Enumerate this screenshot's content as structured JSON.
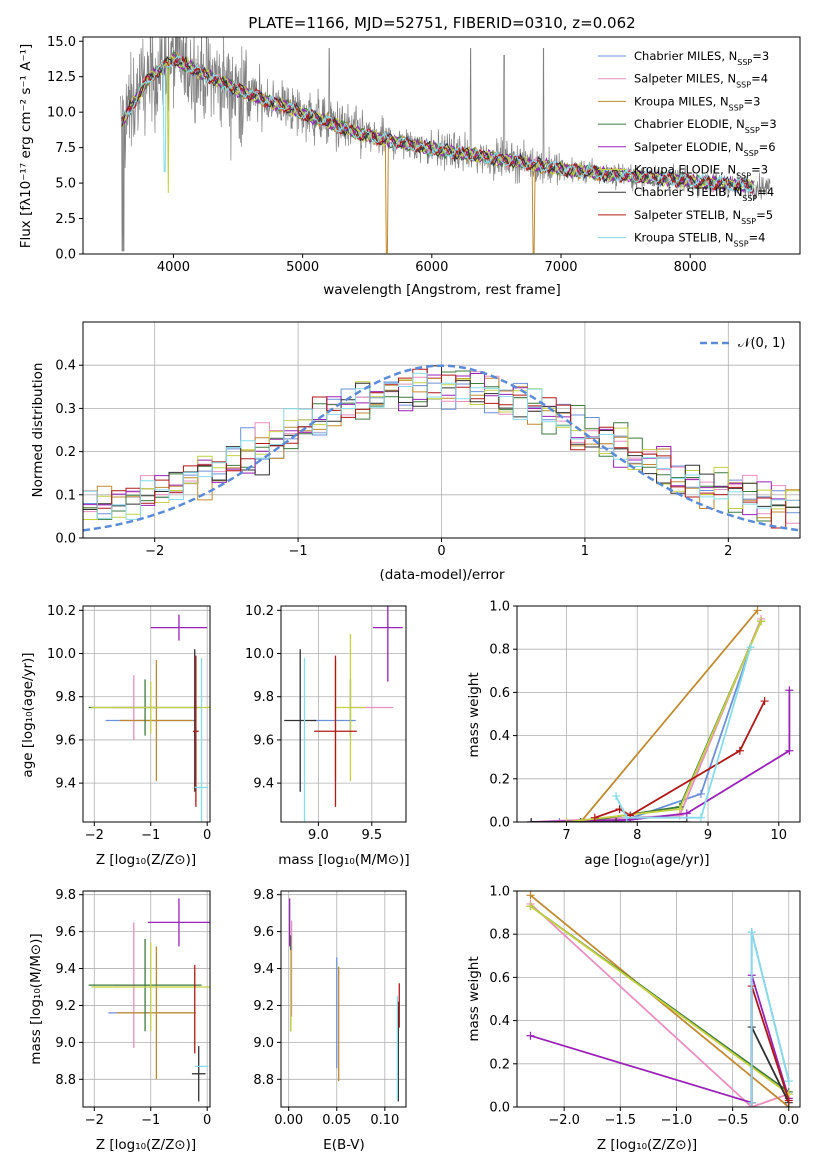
{
  "title": "PLATE=1166, MJD=52751, FIBERID=0310, z=0.062",
  "colors": {
    "spectrum": "#808080",
    "normal": "#5b8bd8",
    "models": [
      "#6c8fd8",
      "#e88fc0",
      "#c08a30",
      "#3d7a3d",
      "#9a22b8",
      "#c4d040",
      "#303030",
      "#b01818",
      "#86dcea"
    ]
  },
  "legend_main": [
    {
      "name": "Chabrier MILES",
      "n": "3"
    },
    {
      "name": "Salpeter MILES",
      "n": "4"
    },
    {
      "name": "Kroupa MILES",
      "n": "3"
    },
    {
      "name": "Chabrier ELODIE",
      "n": "3"
    },
    {
      "name": "Salpeter ELODIE",
      "n": "6"
    },
    {
      "name": "Kroupa ELODIE",
      "n": "3"
    },
    {
      "name": "Chabrier STELIB",
      "n": "4"
    },
    {
      "name": "Salpeter STELIB",
      "n": "5"
    },
    {
      "name": "Kroupa STELIB",
      "n": "4"
    }
  ],
  "legend_prefix": "N",
  "legend_sub": "SSP",
  "chart_data": [
    {
      "id": "spectrum",
      "type": "line",
      "title": "PLATE=1166, MJD=52751, FIBERID=0310, z=0.062",
      "xlabel": "wavelength [Angstrom, rest frame]",
      "ylabel": "Flux [fλ10⁻¹⁷ erg cm⁻² s⁻¹ A⁻¹]",
      "xlim": [
        3300,
        8850
      ],
      "ylim": [
        0,
        15.3
      ],
      "xticks": [
        "4000",
        "5000",
        "6000",
        "7000",
        "8000"
      ],
      "yticks": [
        "0.0",
        "2.5",
        "5.0",
        "7.5",
        "10.0",
        "12.5",
        "15.0"
      ],
      "continuum": {
        "x": [
          3600,
          3700,
          3800,
          3900,
          4000,
          4100,
          4200,
          4300,
          4500,
          4700,
          4900,
          5000,
          5200,
          5400,
          5600,
          5800,
          6000,
          6300,
          6600,
          7000,
          7400,
          7800,
          8200,
          8600
        ],
        "y": [
          9.3,
          10.8,
          12.3,
          13.0,
          13.8,
          13.3,
          12.8,
          12.4,
          11.6,
          10.9,
          10.3,
          9.9,
          9.3,
          8.6,
          8.1,
          7.8,
          7.4,
          7.0,
          6.6,
          6.0,
          5.6,
          5.3,
          5.0,
          4.7
        ]
      },
      "spectrum_range": [
        3590,
        8620
      ],
      "model_range": [
        3600,
        8500
      ]
    },
    {
      "id": "residual_hist",
      "type": "step",
      "xlabel": "(data-model)/error",
      "ylabel": "Normed distribution",
      "xlim": [
        -2.5,
        2.5
      ],
      "ylim": [
        0,
        0.5
      ],
      "xticks": [
        "−2",
        "−1",
        "0",
        "1",
        "2"
      ],
      "yticks": [
        "0.0",
        "0.1",
        "0.2",
        "0.3",
        "0.4"
      ],
      "bin_width": 0.1,
      "reference": "N(0,1)",
      "legend_label": "𝒩(0, 1)"
    },
    {
      "id": "age_vs_Z",
      "type": "errorbar",
      "xlabel": "Z [log₁₀(Z/Z⊙)]",
      "ylabel": "age  [log₁₀(age/yr)]",
      "xlim": [
        -2.2,
        0.05
      ],
      "ylim": [
        9.22,
        10.22
      ],
      "xticks": [
        "−2",
        "−1",
        "0"
      ],
      "yticks": [
        "9.4",
        "9.6",
        "9.8",
        "10.0",
        "10.2"
      ],
      "points": [
        {
          "s": 0,
          "x": -1.0,
          "xe": 0.8,
          "y": 9.69,
          "ye": 0.0
        },
        {
          "s": 1,
          "x": -1.3,
          "xe": 0.4,
          "y": 9.75,
          "ye": 0.15
        },
        {
          "s": 2,
          "x": -0.9,
          "xe": 0.65,
          "y": 9.69,
          "ye": 0.28
        },
        {
          "s": 3,
          "x": -1.1,
          "xe": 1.0,
          "y": 9.75,
          "ye": 0.13
        },
        {
          "s": 4,
          "x": -0.5,
          "xe": 0.5,
          "y": 10.12,
          "ye": 0.06
        },
        {
          "s": 5,
          "x": -1.0,
          "xe": 1.05,
          "y": 9.75,
          "ye": 0.12
        },
        {
          "s": 6,
          "x": -0.22,
          "xe": 0.0,
          "y": 9.69,
          "ye": 0.33
        },
        {
          "s": 7,
          "x": -0.2,
          "xe": 0.05,
          "y": 9.64,
          "ye": 0.35
        },
        {
          "s": 8,
          "x": -0.1,
          "xe": 0.12,
          "y": 9.38,
          "ye": 0.6
        }
      ]
    },
    {
      "id": "age_vs_mass",
      "type": "errorbar",
      "xlabel": "mass [log₁₀(M/M⊙)]",
      "ylabel": "",
      "xlim": [
        8.65,
        9.82
      ],
      "ylim": [
        9.22,
        10.22
      ],
      "xticks": [
        "9.0",
        "9.5"
      ],
      "yticks": [
        "9.4",
        "9.6",
        "9.8",
        "10.0",
        "10.2"
      ],
      "points": [
        {
          "s": 0,
          "x": 9.15,
          "xe": 0.2,
          "y": 9.69,
          "ye": 0.0
        },
        {
          "s": 1,
          "x": 9.5,
          "xe": 0.2,
          "y": 9.75,
          "ye": 0.0
        },
        {
          "s": 2,
          "x": 9.16,
          "xe": 0.0,
          "y": 9.69,
          "ye": 0.28
        },
        {
          "s": 3,
          "x": 9.3,
          "xe": 0.0,
          "y": 9.75,
          "ye": 0.13
        },
        {
          "s": 4,
          "x": 9.65,
          "xe": 0.14,
          "y": 10.12,
          "ye": 0.25
        },
        {
          "s": 5,
          "x": 9.3,
          "xe": 0.14,
          "y": 9.75,
          "ye": 0.34
        },
        {
          "s": 6,
          "x": 8.83,
          "xe": 0.15,
          "y": 9.69,
          "ye": 0.33
        },
        {
          "s": 7,
          "x": 9.16,
          "xe": 0.2,
          "y": 9.64,
          "ye": 0.35
        },
        {
          "s": 8,
          "x": 8.87,
          "xe": 0.0,
          "y": 9.38,
          "ye": 0.6
        }
      ]
    },
    {
      "id": "weight_vs_age",
      "type": "line",
      "xlabel": "age  [log₁₀(age/yr)]",
      "ylabel": "mass weight",
      "xlim": [
        6.3,
        10.3
      ],
      "ylim": [
        0,
        1.0
      ],
      "xticks": [
        "7",
        "8",
        "9",
        "10"
      ],
      "yticks": [
        "0.0",
        "0.2",
        "0.4",
        "0.6",
        "0.8",
        "1.0"
      ],
      "series": [
        {
          "s": 0,
          "x": [
            6.9,
            7.75,
            8.9,
            9.6
          ],
          "y": [
            0.0,
            0.0,
            0.13,
            0.81
          ]
        },
        {
          "s": 1,
          "x": [
            6.5,
            8.6,
            9.75
          ],
          "y": [
            0.0,
            0.03,
            0.94
          ]
        },
        {
          "s": 2,
          "x": [
            7.2,
            9.7
          ],
          "y": [
            0.0,
            0.98
          ]
        },
        {
          "s": 3,
          "x": [
            7.2,
            8.6,
            9.75
          ],
          "y": [
            0.0,
            0.07,
            0.93
          ]
        },
        {
          "s": 4,
          "x": [
            6.5,
            7.9,
            8.7,
            10.15,
            10.15
          ],
          "y": [
            0.0,
            0.01,
            0.04,
            0.33,
            0.61
          ]
        },
        {
          "s": 5,
          "x": [
            7.0,
            8.6,
            9.75
          ],
          "y": [
            0.0,
            0.06,
            0.93
          ]
        },
        {
          "s": 6,
          "x": [
            6.5,
            7.7,
            8.7
          ],
          "y": [
            0.0,
            0.0,
            0.0
          ]
        },
        {
          "s": 7,
          "x": [
            7.4,
            7.75,
            7.9,
            9.45,
            9.8
          ],
          "y": [
            0.02,
            0.06,
            0.03,
            0.33,
            0.56
          ]
        },
        {
          "s": 8,
          "x": [
            7.7,
            7.85,
            8.9,
            9.6
          ],
          "y": [
            0.12,
            0.02,
            0.02,
            0.81
          ]
        }
      ]
    },
    {
      "id": "mass_vs_Z",
      "type": "errorbar",
      "xlabel": "Z [log₁₀(Z/Z⊙)]",
      "ylabel": "mass [log₁₀(M/M⊙)]",
      "xlim": [
        -2.2,
        0.05
      ],
      "ylim": [
        8.65,
        9.82
      ],
      "xticks": [
        "−2",
        "−1",
        "0"
      ],
      "yticks": [
        "8.8",
        "9.0",
        "9.2",
        "9.4",
        "9.6",
        "9.8"
      ],
      "points": [
        {
          "s": 0,
          "x": -1.0,
          "xe": 0.75,
          "y": 9.16,
          "ye": 0.0
        },
        {
          "s": 1,
          "x": -1.3,
          "xe": 0.35,
          "y": 9.31,
          "ye": 0.34
        },
        {
          "s": 2,
          "x": -0.9,
          "xe": 0.7,
          "y": 9.16,
          "ye": 0.36
        },
        {
          "s": 3,
          "x": -1.1,
          "xe": 1.0,
          "y": 9.31,
          "ye": 0.25
        },
        {
          "s": 4,
          "x": -0.5,
          "xe": 0.55,
          "y": 9.65,
          "ye": 0.13
        },
        {
          "s": 5,
          "x": -1.0,
          "xe": 1.05,
          "y": 9.3,
          "ye": 0.24
        },
        {
          "s": 6,
          "x": -0.15,
          "xe": 0.12,
          "y": 8.83,
          "ye": 0.15
        },
        {
          "s": 7,
          "x": -0.22,
          "xe": 0.0,
          "y": 9.18,
          "ye": 0.24
        },
        {
          "s": 8,
          "x": -0.1,
          "xe": 0.12,
          "y": 8.87,
          "ye": 0.0
        }
      ]
    },
    {
      "id": "mass_vs_ebv",
      "type": "errorbar",
      "xlabel": "E(B-V)",
      "ylabel": "",
      "xlim": [
        -0.008,
        0.122
      ],
      "ylim": [
        8.65,
        9.82
      ],
      "xticks": [
        "0.00",
        "0.05",
        "0.10"
      ],
      "yticks": [
        "8.8",
        "9.0",
        "9.2",
        "9.4",
        "9.6",
        "9.8"
      ],
      "points": [
        {
          "s": 0,
          "x": 0.05,
          "xe": 0.0,
          "y": 9.16,
          "ye": 0.3
        },
        {
          "s": 1,
          "x": 0.003,
          "xe": 0.0,
          "y": 9.4,
          "ye": 0.26
        },
        {
          "s": 2,
          "x": 0.052,
          "xe": 0.0,
          "y": 9.1,
          "ye": 0.31
        },
        {
          "s": 3,
          "x": 0.002,
          "xe": 0.0,
          "y": 9.32,
          "ye": 0.26
        },
        {
          "s": 4,
          "x": 0.001,
          "xe": 0.0,
          "y": 9.65,
          "ye": 0.13
        },
        {
          "s": 5,
          "x": 0.002,
          "xe": 0.0,
          "y": 9.28,
          "ye": 0.22
        },
        {
          "s": 6,
          "x": 0.114,
          "xe": 0.0,
          "y": 8.95,
          "ye": 0.27
        },
        {
          "s": 7,
          "x": 0.115,
          "xe": 0.0,
          "y": 9.2,
          "ye": 0.12
        },
        {
          "s": 8,
          "x": 0.113,
          "xe": 0.0,
          "y": 8.97,
          "ye": 0.28
        }
      ]
    },
    {
      "id": "weight_vs_Z",
      "type": "line",
      "xlabel": "Z [log₁₀(Z/Z⊙)]",
      "ylabel": "mass weight",
      "xlim": [
        -2.42,
        0.1
      ],
      "ylim": [
        0,
        1.0
      ],
      "xticks": [
        "−2.0",
        "−1.5",
        "−1.0",
        "−0.5",
        "0.0"
      ],
      "yticks": [
        "0.0",
        "0.2",
        "0.4",
        "0.6",
        "0.8",
        "1.0"
      ],
      "series": [
        {
          "s": 0,
          "x": [
            -0.33,
            -0.33,
            0.0
          ],
          "y": [
            0.0,
            0.81,
            0.12
          ]
        },
        {
          "s": 1,
          "x": [
            -2.3,
            -0.33,
            0.0
          ],
          "y": [
            0.94,
            0.0,
            0.06
          ]
        },
        {
          "s": 2,
          "x": [
            -2.3,
            0.0
          ],
          "y": [
            0.98,
            0.0
          ]
        },
        {
          "s": 3,
          "x": [
            -2.3,
            0.0
          ],
          "y": [
            0.93,
            0.07
          ]
        },
        {
          "s": 4,
          "x": [
            -2.3,
            -0.33,
            -0.33,
            0.0
          ],
          "y": [
            0.33,
            0.02,
            0.61,
            0.04
          ]
        },
        {
          "s": 5,
          "x": [
            -2.3,
            0.0
          ],
          "y": [
            0.93,
            0.06
          ]
        },
        {
          "s": 6,
          "x": [
            -0.33,
            0.0
          ],
          "y": [
            0.37,
            0.02
          ]
        },
        {
          "s": 7,
          "x": [
            -0.33,
            -0.33,
            0.0
          ],
          "y": [
            0.02,
            0.56,
            0.03
          ]
        },
        {
          "s": 8,
          "x": [
            -0.33,
            -0.33,
            0.0
          ],
          "y": [
            0.02,
            0.81,
            0.12
          ]
        }
      ]
    }
  ]
}
